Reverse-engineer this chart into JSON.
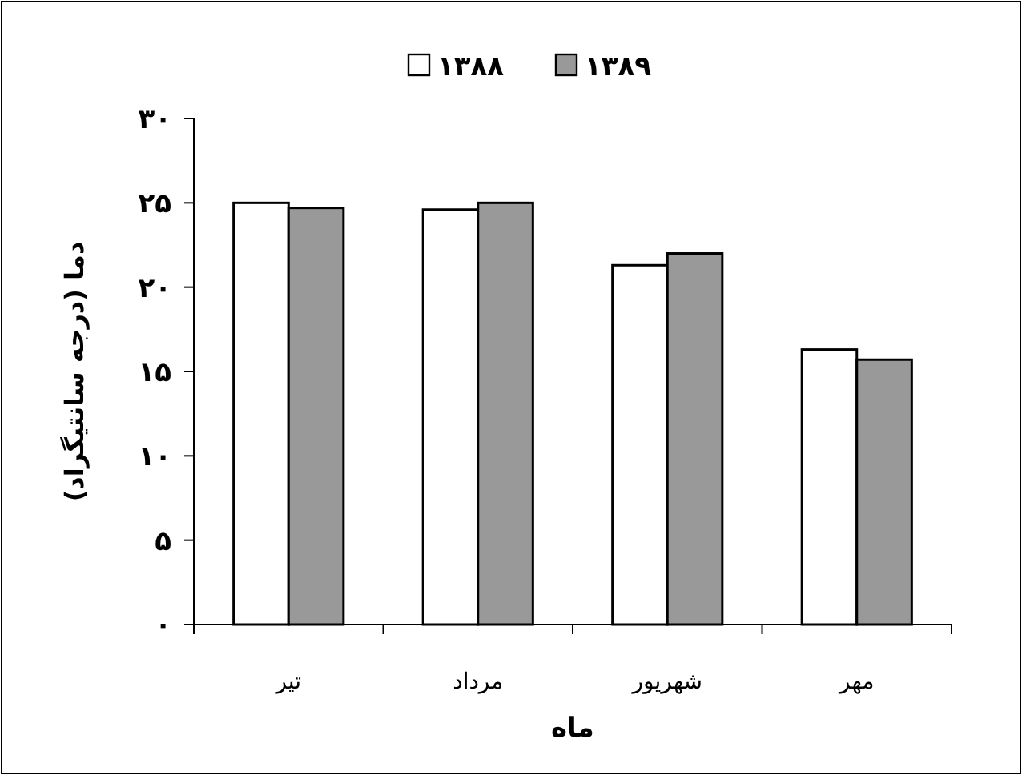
{
  "chart_data": {
    "type": "bar",
    "xlabel": "ماه",
    "ylabel": "دما (درجه سانتیگراد)",
    "categories": [
      "تیر",
      "مرداد",
      "شهریور",
      "مهر"
    ],
    "series": [
      {
        "name": "۱۳۸۸",
        "color": "#ffffff",
        "values": [
          25.0,
          24.6,
          21.3,
          16.3
        ]
      },
      {
        "name": "۱۳۸۹",
        "color": "#999999",
        "values": [
          24.7,
          25.0,
          22.0,
          15.7
        ]
      }
    ],
    "ylim": [
      0,
      30
    ],
    "yticks": [
      {
        "value": 0,
        "label": "۰"
      },
      {
        "value": 5,
        "label": "۵"
      },
      {
        "value": 10,
        "label": "۱۰"
      },
      {
        "value": 15,
        "label": "۱۵"
      },
      {
        "value": 20,
        "label": "۲۰"
      },
      {
        "value": 25,
        "label": "۲۵"
      },
      {
        "value": 30,
        "label": "۳۰"
      }
    ],
    "grid": false,
    "legend": "top"
  }
}
